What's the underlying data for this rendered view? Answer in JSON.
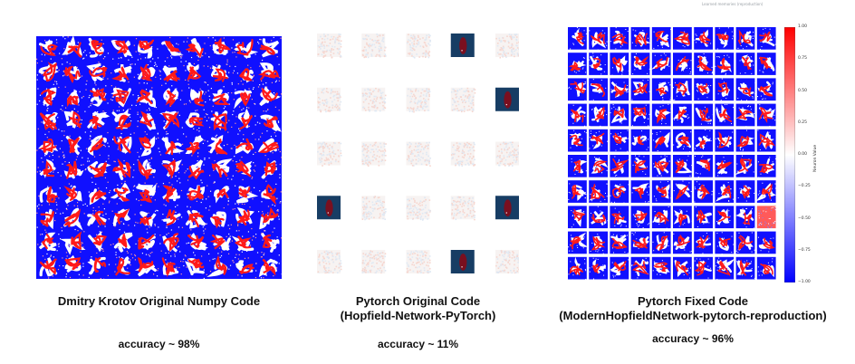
{
  "panels": [
    {
      "caption": "Dmitry Krotov Original Numpy Code",
      "accuracy": "accuracy ~ 98%"
    },
    {
      "caption": "Pytorch Original Code\n(Hopfield-Network-PyTorch)",
      "accuracy": "accuracy ~ 11%"
    },
    {
      "caption": "Pytorch Fixed Code\n(ModernHopfieldNetwork-pytorch-reproduction)",
      "accuracy": "accuracy ~ 96%"
    }
  ],
  "top_right_note": "Learned memories (reproduction)",
  "colorbar": {
    "label": "Neuron Value",
    "ticks": [
      "1.00",
      "0.75",
      "0.50",
      "0.25",
      "0.00",
      "−0.25",
      "−0.50",
      "−0.75",
      "−1.00"
    ]
  },
  "colors": {
    "blue": "#1010ff",
    "red": "#ff1a1a",
    "dark_navy": "#173d64",
    "dark_red": "#7a0f1f",
    "pale_red": "#f6d6cf",
    "pale_blue": "#dfe8f3"
  }
}
